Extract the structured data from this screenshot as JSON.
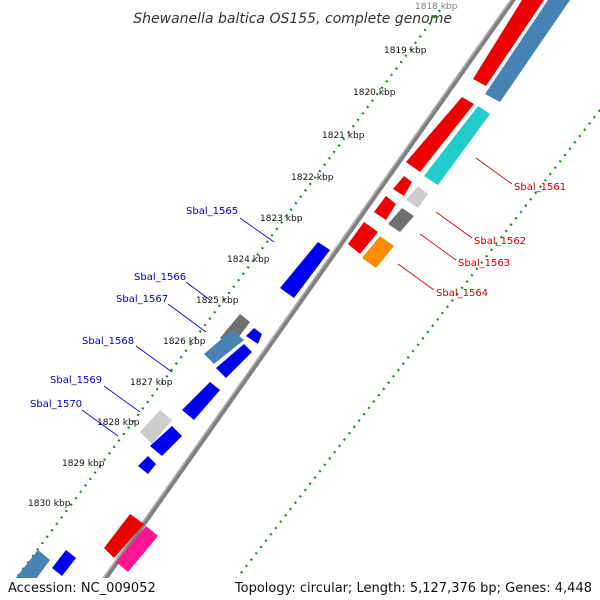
{
  "title": "Shewanella baltica OS155, complete genome",
  "kbp_ticks": [
    "1818 kbp",
    "1819 kbp",
    "1820 kbp",
    "1821 kbp",
    "1822 kbp",
    "1823 kbp",
    "1824 kbp",
    "1825 kbp",
    "1826 kbp",
    "1827 kbp",
    "1828 kbp",
    "1829 kbp",
    "1830 kbp"
  ],
  "gene_labels_reverse": [
    "Sbal_1561",
    "Sbal_1562",
    "Sbal_1563",
    "Sbal_1564"
  ],
  "gene_labels_forward": [
    "Sbal_1565",
    "Sbal_1566",
    "Sbal_1567",
    "Sbal_1568",
    "Sbal_1569",
    "Sbal_1570"
  ],
  "colors": {
    "red": "#ee0000",
    "steelblue": "#4682b4",
    "cyan": "#22cccc",
    "blue": "#0000ee",
    "gray": "#707070",
    "lightgray": "#cccccc",
    "orange": "#ff8c00",
    "pink": "#ff1493",
    "backbone": "#808080",
    "dots": "#1a8a1a",
    "label_red": "#cc0000",
    "label_blue": "#0000cc"
  },
  "footer": {
    "accession": "Accession: NC_009052",
    "stats": "Topology: circular; Length: 5,127,376 bp; Genes: 4,448"
  }
}
